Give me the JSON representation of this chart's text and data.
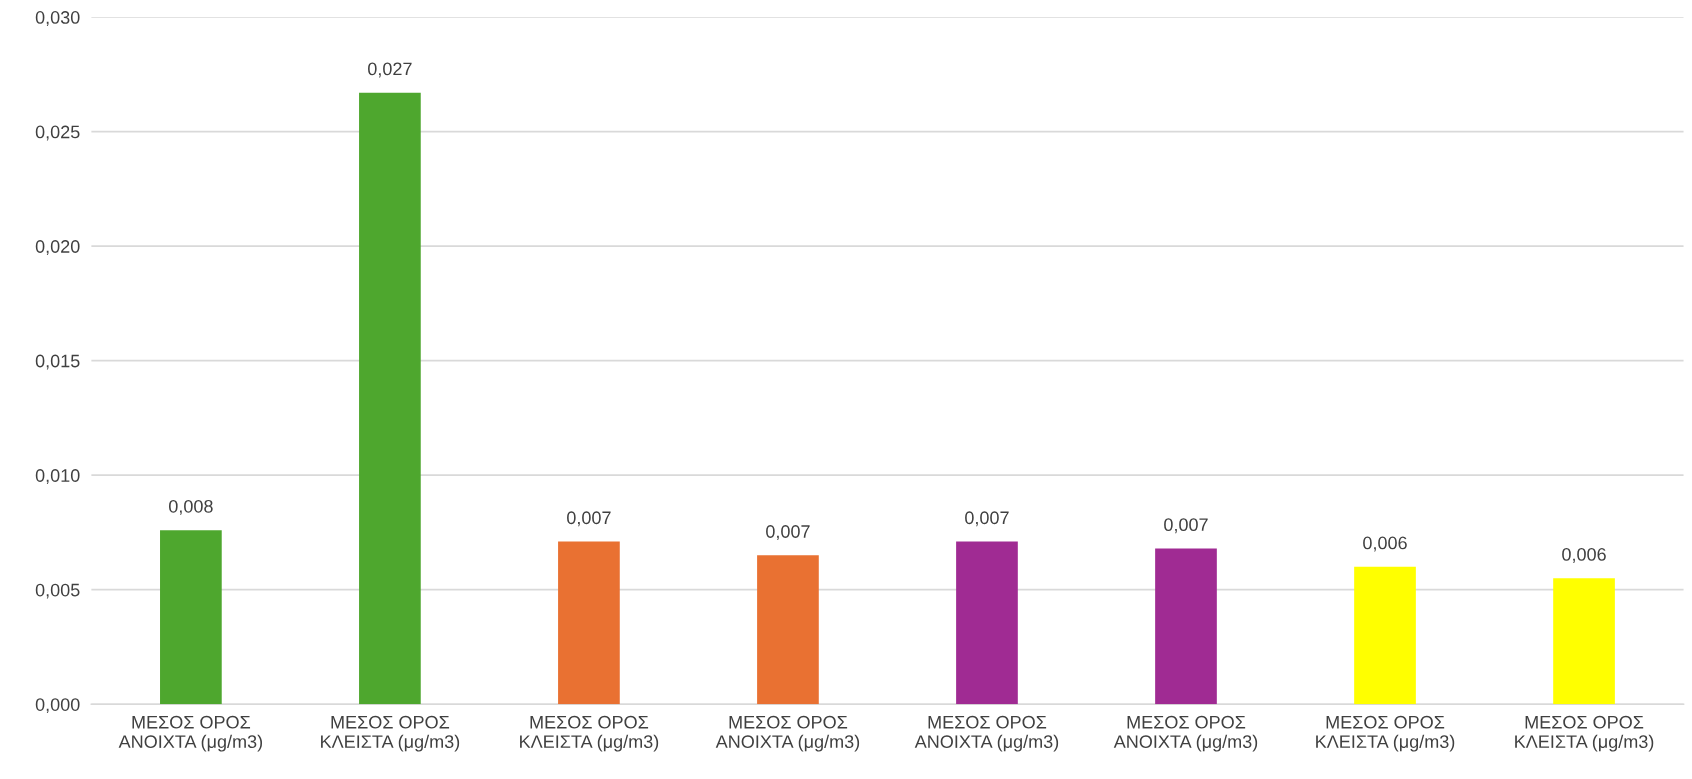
{
  "chart_data": {
    "type": "bar",
    "categories": [
      "ΜΕΣΟΣ ΟΡΟΣ\nΑΝΟΙΧΤΑ (μg/m3)",
      "ΜΕΣΟΣ ΟΡΟΣ\nΚΛΕΙΣΤΑ (μg/m3)",
      "ΜΕΣΟΣ ΟΡΟΣ\nΚΛΕΙΣΤΑ (μg/m3)",
      "ΜΕΣΟΣ ΟΡΟΣ\nΑΝΟΙΧΤΑ (μg/m3)",
      "ΜΕΣΟΣ ΟΡΟΣ\nΑΝΟΙΧΤΑ (μg/m3)",
      "ΜΕΣΟΣ ΟΡΟΣ\nΑΝΟΙΧΤΑ (μg/m3)",
      "ΜΕΣΟΣ ΟΡΟΣ\nΚΛΕΙΣΤΑ (μg/m3)",
      "ΜΕΣΟΣ ΟΡΟΣ\nΚΛΕΙΣΤΑ (μg/m3)"
    ],
    "values": [
      0.0076,
      0.0267,
      0.0071,
      0.0065,
      0.0071,
      0.0068,
      0.006,
      0.0055
    ],
    "value_labels": [
      "0,008",
      "0,027",
      "0,007",
      "0,007",
      "0,007",
      "0,007",
      "0,006",
      "0,006"
    ],
    "colors": [
      "#4ea72e",
      "#4ea72e",
      "#e97132",
      "#e97132",
      "#a02b93",
      "#a02b93",
      "#ffff00",
      "#ffff00"
    ],
    "ylim": [
      0,
      0.03
    ],
    "yticks": [
      {
        "value": 0,
        "label": "0,000"
      },
      {
        "value": 0.005,
        "label": "0,005"
      },
      {
        "value": 0.01,
        "label": "0,010"
      },
      {
        "value": 0.015,
        "label": "0,015"
      },
      {
        "value": 0.02,
        "label": "0,020"
      },
      {
        "value": 0.025,
        "label": "0,025"
      },
      {
        "value": 0.03,
        "label": "0,030"
      }
    ],
    "grid": "y"
  }
}
